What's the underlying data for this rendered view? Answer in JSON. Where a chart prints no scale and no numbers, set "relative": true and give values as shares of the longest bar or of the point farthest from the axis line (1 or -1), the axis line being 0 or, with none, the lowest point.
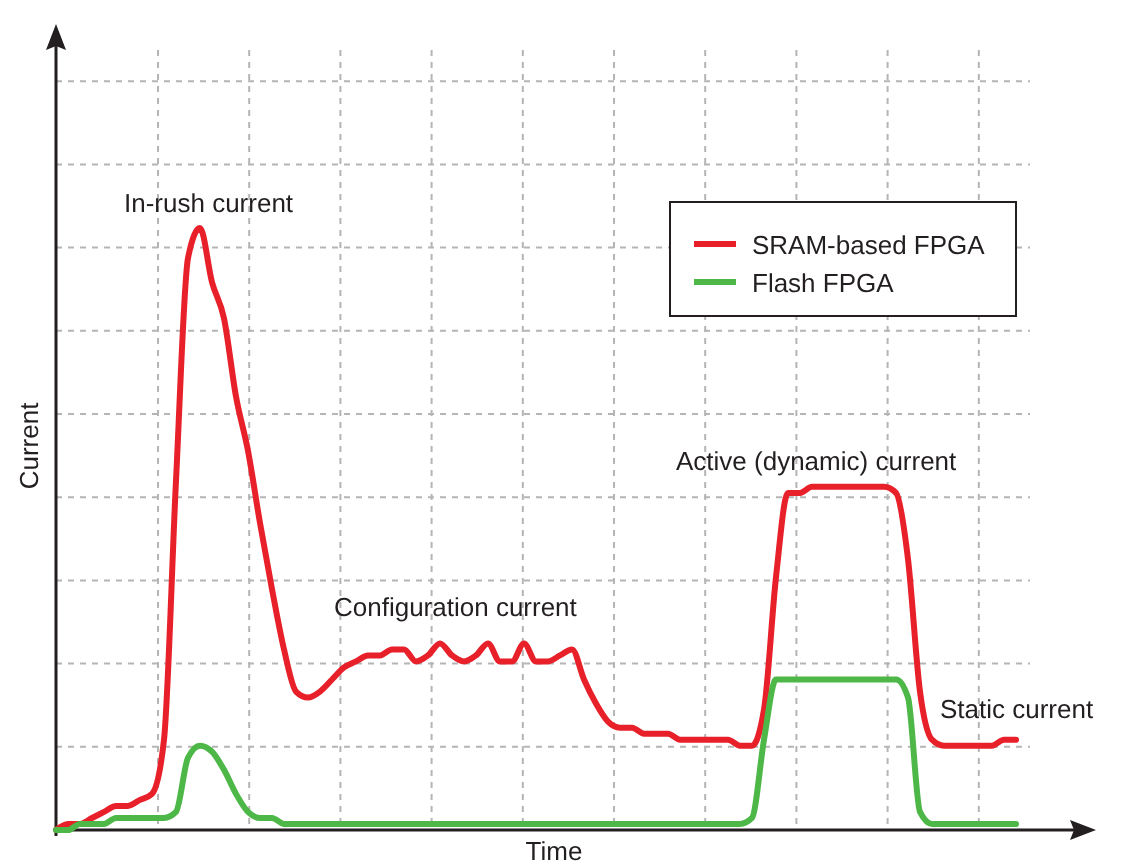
{
  "chart_data": {
    "type": "line",
    "relative": true,
    "xlabel": "Time",
    "ylabel": "Current",
    "grid": true,
    "legend": "top right",
    "marker": "none",
    "line_style": "solid",
    "categories": [
      null,
      null,
      null,
      null,
      null,
      null,
      null,
      null,
      null,
      null,
      null,
      null,
      null,
      null,
      null,
      null,
      null,
      null,
      null,
      null,
      null,
      null,
      null,
      null,
      null,
      null,
      null,
      null,
      null,
      null,
      null,
      null,
      null,
      null,
      null,
      null,
      null,
      null,
      null,
      null,
      null,
      null,
      null,
      null,
      null,
      null,
      null,
      null,
      null,
      null,
      null,
      null,
      null,
      null,
      null,
      null,
      null,
      null,
      null,
      null,
      null,
      null,
      null,
      null,
      null,
      null,
      null,
      null,
      null,
      null,
      null,
      null,
      null,
      null,
      null,
      null,
      null,
      null,
      null,
      null,
      null
    ],
    "series": [
      {
        "name": "SRAM-based FPGA",
        "color": "#e8202a",
        "values": [
          0,
          0.01,
          0.01,
          0.02,
          0.03,
          0.04,
          0.04,
          0.05,
          0.06,
          0.15,
          0.58,
          0.95,
          1,
          0.91,
          0.85,
          0.72,
          0.63,
          0.51,
          0.4,
          0.3,
          0.23,
          0.22,
          0.23,
          0.25,
          0.27,
          0.28,
          0.29,
          0.29,
          0.3,
          0.3,
          0.28,
          0.29,
          0.31,
          0.29,
          0.28,
          0.29,
          0.31,
          0.28,
          0.28,
          0.31,
          0.28,
          0.28,
          0.29,
          0.3,
          0.25,
          0.21,
          0.18,
          0.17,
          0.17,
          0.16,
          0.16,
          0.16,
          0.15,
          0.15,
          0.15,
          0.15,
          0.15,
          0.14,
          0.14,
          0.2,
          0.42,
          0.56,
          0.56,
          0.57,
          0.57,
          0.57,
          0.57,
          0.57,
          0.57,
          0.57,
          0.56,
          0.45,
          0.23,
          0.15,
          0.14,
          0.14,
          0.14,
          0.14,
          0.14,
          0.15,
          0.15
        ]
      },
      {
        "name": "Flash FPGA",
        "color": "#4db848",
        "values": [
          0,
          0,
          0.01,
          0.01,
          0.01,
          0.02,
          0.02,
          0.02,
          0.02,
          0.02,
          0.03,
          0.12,
          0.14,
          0.13,
          0.1,
          0.06,
          0.03,
          0.02,
          0.02,
          0.01,
          0.01,
          0.01,
          0.01,
          0.01,
          0.01,
          0.01,
          0.01,
          0.01,
          0.01,
          0.01,
          0.01,
          0.01,
          0.01,
          0.01,
          0.01,
          0.01,
          0.01,
          0.01,
          0.01,
          0.01,
          0.01,
          0.01,
          0.01,
          0.01,
          0.01,
          0.01,
          0.01,
          0.01,
          0.01,
          0.01,
          0.01,
          0.01,
          0.01,
          0.01,
          0.01,
          0.01,
          0.01,
          0.01,
          0.02,
          0.15,
          0.25,
          0.25,
          0.25,
          0.25,
          0.25,
          0.25,
          0.25,
          0.25,
          0.25,
          0.25,
          0.25,
          0.22,
          0.03,
          0.01,
          0.01,
          0.01,
          0.01,
          0.01,
          0.01,
          0.01,
          0.01
        ]
      }
    ],
    "annotations": [
      "In-rush current",
      "Configuration current",
      "Active (dynamic) current",
      "Static current"
    ]
  }
}
